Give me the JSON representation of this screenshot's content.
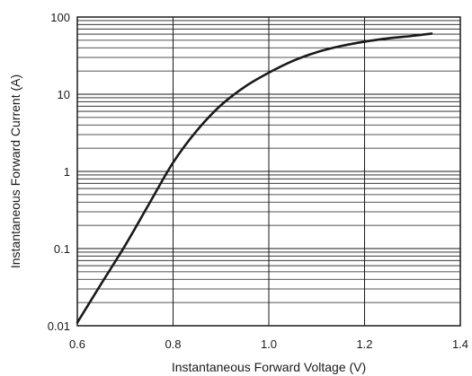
{
  "chart_data": {
    "type": "line",
    "xlabel": "Instantaneous Forward Voltage (V)",
    "ylabel": "Instantaneous Forward Current (A)",
    "x_scale": "linear",
    "y_scale": "log",
    "xlim": [
      0.6,
      1.4
    ],
    "ylim": [
      0.01,
      100
    ],
    "x_ticks": [
      "0.6",
      "0.8",
      "1.0",
      "1.2",
      "1.4"
    ],
    "y_ticks": [
      "0.01",
      "0.1",
      "1",
      "10",
      "100"
    ],
    "grid": true,
    "series": [
      {
        "x": [
          0.6,
          0.65,
          0.7,
          0.75,
          0.8,
          0.85,
          0.9,
          0.95,
          1.0,
          1.05,
          1.1,
          1.15,
          1.2,
          1.25,
          1.3,
          1.34
        ],
        "y": [
          0.011,
          0.035,
          0.11,
          0.38,
          1.3,
          3.4,
          7.2,
          12.5,
          19,
          27,
          35,
          42,
          48,
          53,
          57,
          61
        ]
      }
    ]
  }
}
